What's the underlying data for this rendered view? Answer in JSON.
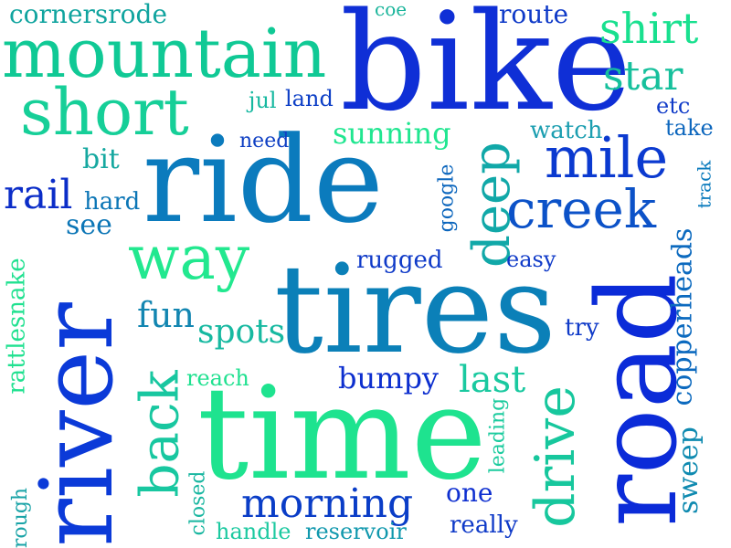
{
  "words": [
    {
      "text": "bike",
      "color": "#0f2fd6"
    },
    {
      "text": "ride",
      "color": "#0b7bbd"
    },
    {
      "text": "tires",
      "color": "#0b80b8"
    },
    {
      "text": "time",
      "color": "#1ee38f"
    },
    {
      "text": "road",
      "color": "#0b2bd8"
    },
    {
      "text": "river",
      "color": "#0b3ad8"
    },
    {
      "text": "mountain",
      "color": "#10c995"
    },
    {
      "text": "short",
      "color": "#16cf98"
    },
    {
      "text": "way",
      "color": "#22e88f"
    },
    {
      "text": "creek",
      "color": "#0c52c8"
    },
    {
      "text": "mile",
      "color": "#0b3ad0"
    },
    {
      "text": "deep",
      "color": "#11a8a8"
    },
    {
      "text": "drive",
      "color": "#17c79d"
    },
    {
      "text": "back",
      "color": "#18c7a0"
    },
    {
      "text": "morning",
      "color": "#0a3dc7"
    },
    {
      "text": "shirt",
      "color": "#19e08f"
    },
    {
      "text": "star",
      "color": "#16c09c"
    },
    {
      "text": "rail",
      "color": "#0b2dc8"
    },
    {
      "text": "cornersrode",
      "color": "#11a49f"
    },
    {
      "text": "route",
      "color": "#0f3ac8"
    },
    {
      "text": "coe",
      "color": "#1ab59b"
    },
    {
      "text": "bit",
      "color": "#16a8a0"
    },
    {
      "text": "hard",
      "color": "#0c76b6"
    },
    {
      "text": "see",
      "color": "#0c76b6"
    },
    {
      "text": "need",
      "color": "#0e3fc3"
    },
    {
      "text": "jul",
      "color": "#16b8a0"
    },
    {
      "text": "land",
      "color": "#0d3fc6"
    },
    {
      "text": "sunning",
      "color": "#20e690"
    },
    {
      "text": "watch",
      "color": "#1b9eb0"
    },
    {
      "text": "etc",
      "color": "#0f3ac8"
    },
    {
      "text": "take",
      "color": "#0c66bd"
    },
    {
      "text": "track",
      "color": "#0b7bbd"
    },
    {
      "text": "google",
      "color": "#0c66bd"
    },
    {
      "text": "rugged",
      "color": "#0f3ac8"
    },
    {
      "text": "easy",
      "color": "#0f3ac8"
    },
    {
      "text": "fun",
      "color": "#1386b1"
    },
    {
      "text": "spots",
      "color": "#17b9a1"
    },
    {
      "text": "try",
      "color": "#0f3ac8"
    },
    {
      "text": "copperheads",
      "color": "#0c6abf"
    },
    {
      "text": "rattlesnake",
      "color": "#20e190"
    },
    {
      "text": "reach",
      "color": "#20e190"
    },
    {
      "text": "bumpy",
      "color": "#0d2fcf"
    },
    {
      "text": "last",
      "color": "#1ac9a0"
    },
    {
      "text": "sweep",
      "color": "#0f8ab0"
    },
    {
      "text": "leading",
      "color": "#1bcb9e"
    },
    {
      "text": "one",
      "color": "#0e2fd0"
    },
    {
      "text": "closed",
      "color": "#18b6a0"
    },
    {
      "text": "handle",
      "color": "#1cc9a0"
    },
    {
      "text": "reservoir",
      "color": "#1098ad"
    },
    {
      "text": "really",
      "color": "#0f3ac8"
    },
    {
      "text": "rough",
      "color": "#19a3a7"
    }
  ]
}
